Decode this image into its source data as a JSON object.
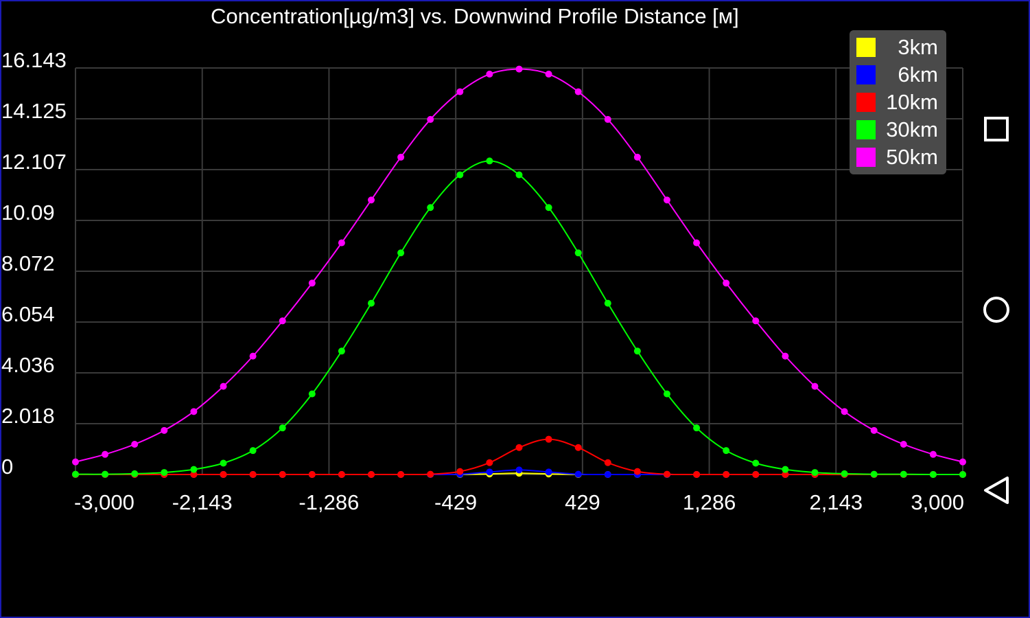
{
  "colors": {
    "background": "#000000",
    "grid": "#3a3a3a",
    "text": "#ffffff",
    "frame": "#1a1ab4",
    "legend_bg": "#4a4a4a"
  },
  "navbar": {
    "recents_icon": "square-recents-icon",
    "home_icon": "circle-home-icon",
    "back_icon": "triangle-back-icon"
  },
  "chart_data": {
    "type": "line",
    "title": "Concentration[µg/m3] vs. Downwind Profile Distance [м]",
    "xlabel": "",
    "ylabel": "",
    "xlim": [
      -3000,
      3000
    ],
    "ylim": [
      0,
      16.143
    ],
    "grid": true,
    "legend_placement": "top-right",
    "x_ticks": [
      -3000,
      -2143,
      -1286,
      -429,
      429,
      1286,
      2143,
      3000
    ],
    "x_tick_labels": [
      "-3,000",
      "-2,143",
      "-1,286",
      "-429",
      "429",
      "1,286",
      "2,143",
      "3,000"
    ],
    "y_ticks": [
      0,
      2.018,
      4.036,
      6.054,
      8.072,
      10.09,
      12.107,
      14.125,
      16.143
    ],
    "y_tick_labels": [
      "0",
      "2.018",
      "4.036",
      "6.054",
      "8.072",
      "10.09",
      "12.107",
      "14.125",
      "16.143"
    ],
    "x": [
      -3000,
      -2800,
      -2600,
      -2400,
      -2200,
      -2000,
      -1800,
      -1600,
      -1400,
      -1200,
      -1000,
      -800,
      -600,
      -400,
      -200,
      0,
      200,
      400,
      600,
      800,
      1000,
      1200,
      1400,
      1600,
      1800,
      2000,
      2200,
      2400,
      2600,
      2800,
      3000
    ],
    "series": [
      {
        "name": "3km",
        "color": "#ffff00",
        "values": [
          0,
          0,
          0,
          0,
          0,
          0,
          0,
          0,
          0,
          0,
          0,
          0,
          0,
          0,
          0.02,
          0.05,
          0.02,
          0,
          0,
          0,
          0,
          0,
          0,
          0,
          0,
          0,
          0,
          0,
          0,
          0,
          0
        ]
      },
      {
        "name": "6km",
        "color": "#0000ff",
        "values": [
          0,
          0,
          0,
          0,
          0,
          0,
          0,
          0,
          0,
          0,
          0,
          0,
          0,
          0.01,
          0.1,
          0.18,
          0.1,
          0.01,
          0,
          0,
          0,
          0,
          0,
          0,
          0,
          0,
          0,
          0,
          0,
          0,
          0
        ]
      },
      {
        "name": "10km",
        "color": "#ff0000",
        "values": [
          0,
          0,
          0,
          0,
          0,
          0,
          0,
          0,
          0,
          0,
          0,
          0,
          0.01,
          0.12,
          0.47,
          1.07,
          1.4,
          1.07,
          0.47,
          0.12,
          0.01,
          0,
          0,
          0,
          0,
          0,
          0,
          0,
          0,
          0,
          0
        ]
      },
      {
        "name": "30km",
        "color": "#00ff00",
        "values": [
          0.01,
          0.01,
          0.03,
          0.08,
          0.2,
          0.45,
          0.95,
          1.85,
          3.2,
          4.9,
          6.8,
          8.8,
          10.6,
          11.9,
          12.45,
          11.9,
          10.6,
          8.8,
          6.8,
          4.9,
          3.2,
          1.85,
          0.95,
          0.45,
          0.2,
          0.08,
          0.03,
          0.01,
          0.01,
          0,
          0
        ]
      },
      {
        "name": "50km",
        "color": "#ff00ff",
        "values": [
          0.5,
          0.8,
          1.2,
          1.75,
          2.5,
          3.5,
          4.7,
          6.1,
          7.6,
          9.2,
          10.9,
          12.6,
          14.1,
          15.2,
          15.9,
          16.1,
          15.9,
          15.2,
          14.1,
          12.6,
          10.9,
          9.2,
          7.6,
          6.1,
          4.7,
          3.5,
          2.5,
          1.75,
          1.2,
          0.8,
          0.5
        ]
      }
    ]
  }
}
